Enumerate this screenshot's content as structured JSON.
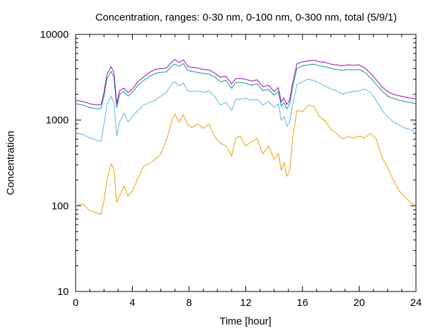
{
  "chart_data": {
    "type": "line",
    "title": "Concentration, ranges: 0-30 nm, 0-100 nm, 0-300 nm, total (5/9/1)",
    "xlabel": "Time [hour]",
    "ylabel": "Concentration",
    "xlim": [
      0,
      24
    ],
    "ylim": [
      10,
      10000
    ],
    "yscale": "log",
    "grid": false,
    "legend": "none",
    "xticks": [
      "0",
      "4",
      "8",
      "12",
      "16",
      "20",
      "24"
    ],
    "yticks": [
      "10",
      "100",
      "1000",
      "10000"
    ],
    "x": [
      0,
      0.5,
      1,
      1.5,
      1.8,
      2,
      2.2,
      2.5,
      2.7,
      2.9,
      3.1,
      3.4,
      3.7,
      4,
      4.4,
      4.8,
      5.2,
      5.6,
      6,
      6.4,
      6.8,
      7,
      7.3,
      7.6,
      7.9,
      8.2,
      8.6,
      9,
      9.4,
      9.8,
      10.2,
      10.6,
      11,
      11.3,
      11.6,
      12,
      12.4,
      12.8,
      13.2,
      13.6,
      14,
      14.3,
      14.5,
      14.7,
      14.9,
      15.1,
      15.3,
      15.6,
      16,
      16.4,
      16.8,
      17.2,
      17.6,
      18,
      18.4,
      18.8,
      19.2,
      19.6,
      20,
      20.4,
      20.8,
      21.2,
      21.6,
      22,
      22.4,
      22.8,
      23.2,
      23.6,
      24
    ],
    "series": [
      {
        "color": "#e69f00",
        "values": [
          100,
          105,
          88,
          82,
          80,
          115,
          200,
          310,
          270,
          110,
          130,
          170,
          130,
          150,
          210,
          290,
          310,
          350,
          400,
          580,
          1000,
          1180,
          950,
          1150,
          880,
          820,
          900,
          800,
          900,
          640,
          540,
          500,
          380,
          620,
          650,
          500,
          560,
          610,
          400,
          500,
          350,
          410,
          260,
          320,
          220,
          260,
          600,
          1300,
          1250,
          1500,
          1450,
          1100,
          980,
          780,
          700,
          600,
          640,
          620,
          650,
          620,
          700,
          600,
          370,
          280,
          200,
          150,
          130,
          110,
          100
        ]
      },
      {
        "color": "#56b4e9",
        "values": [
          700,
          680,
          620,
          580,
          570,
          900,
          1500,
          1900,
          1600,
          650,
          950,
          1200,
          950,
          1100,
          1300,
          1500,
          1600,
          1700,
          1900,
          2100,
          2700,
          2800,
          2500,
          2700,
          2200,
          2150,
          2200,
          2100,
          2200,
          1900,
          1500,
          1600,
          1300,
          1750,
          1750,
          1800,
          1700,
          1750,
          1500,
          1650,
          1400,
          1550,
          1000,
          1100,
          850,
          950,
          1500,
          2600,
          2800,
          3000,
          2900,
          2700,
          2500,
          2300,
          2200,
          2000,
          2100,
          2150,
          2200,
          2300,
          2100,
          1700,
          1300,
          1100,
          950,
          880,
          810,
          770,
          740
        ]
      },
      {
        "color": "#009e73",
        "values": [
          1550,
          1500,
          1400,
          1350,
          1380,
          1900,
          3000,
          3700,
          3200,
          1400,
          2000,
          2150,
          1900,
          2100,
          2550,
          2900,
          3200,
          3500,
          3600,
          3650,
          4300,
          4500,
          4250,
          4550,
          3800,
          3700,
          3600,
          3500,
          3450,
          3200,
          2800,
          2900,
          2350,
          2750,
          2750,
          2700,
          2550,
          2650,
          2200,
          2300,
          1950,
          2150,
          1450,
          1600,
          1350,
          1550,
          2400,
          4000,
          4300,
          4400,
          4500,
          4300,
          4200,
          4000,
          3900,
          3800,
          3900,
          3850,
          3900,
          3600,
          3100,
          2600,
          2200,
          1900,
          1800,
          1700,
          1650,
          1600,
          1550
        ]
      },
      {
        "color": "#9400d3",
        "values": [
          1700,
          1650,
          1550,
          1500,
          1520,
          2100,
          3400,
          4200,
          3600,
          1550,
          2200,
          2350,
          2100,
          2300,
          2800,
          3200,
          3600,
          3900,
          4000,
          4050,
          4800,
          5100,
          4700,
          5050,
          4250,
          4100,
          4050,
          3900,
          3850,
          3550,
          3150,
          3250,
          2650,
          3050,
          3050,
          3000,
          2850,
          2950,
          2450,
          2550,
          2150,
          2400,
          1620,
          1800,
          1520,
          1720,
          2700,
          4500,
          4800,
          4900,
          5000,
          4800,
          4700,
          4500,
          4400,
          4300,
          4400,
          4350,
          4400,
          4050,
          3500,
          2950,
          2450,
          2150,
          2000,
          1920,
          1860,
          1800,
          1750
        ]
      }
    ]
  }
}
